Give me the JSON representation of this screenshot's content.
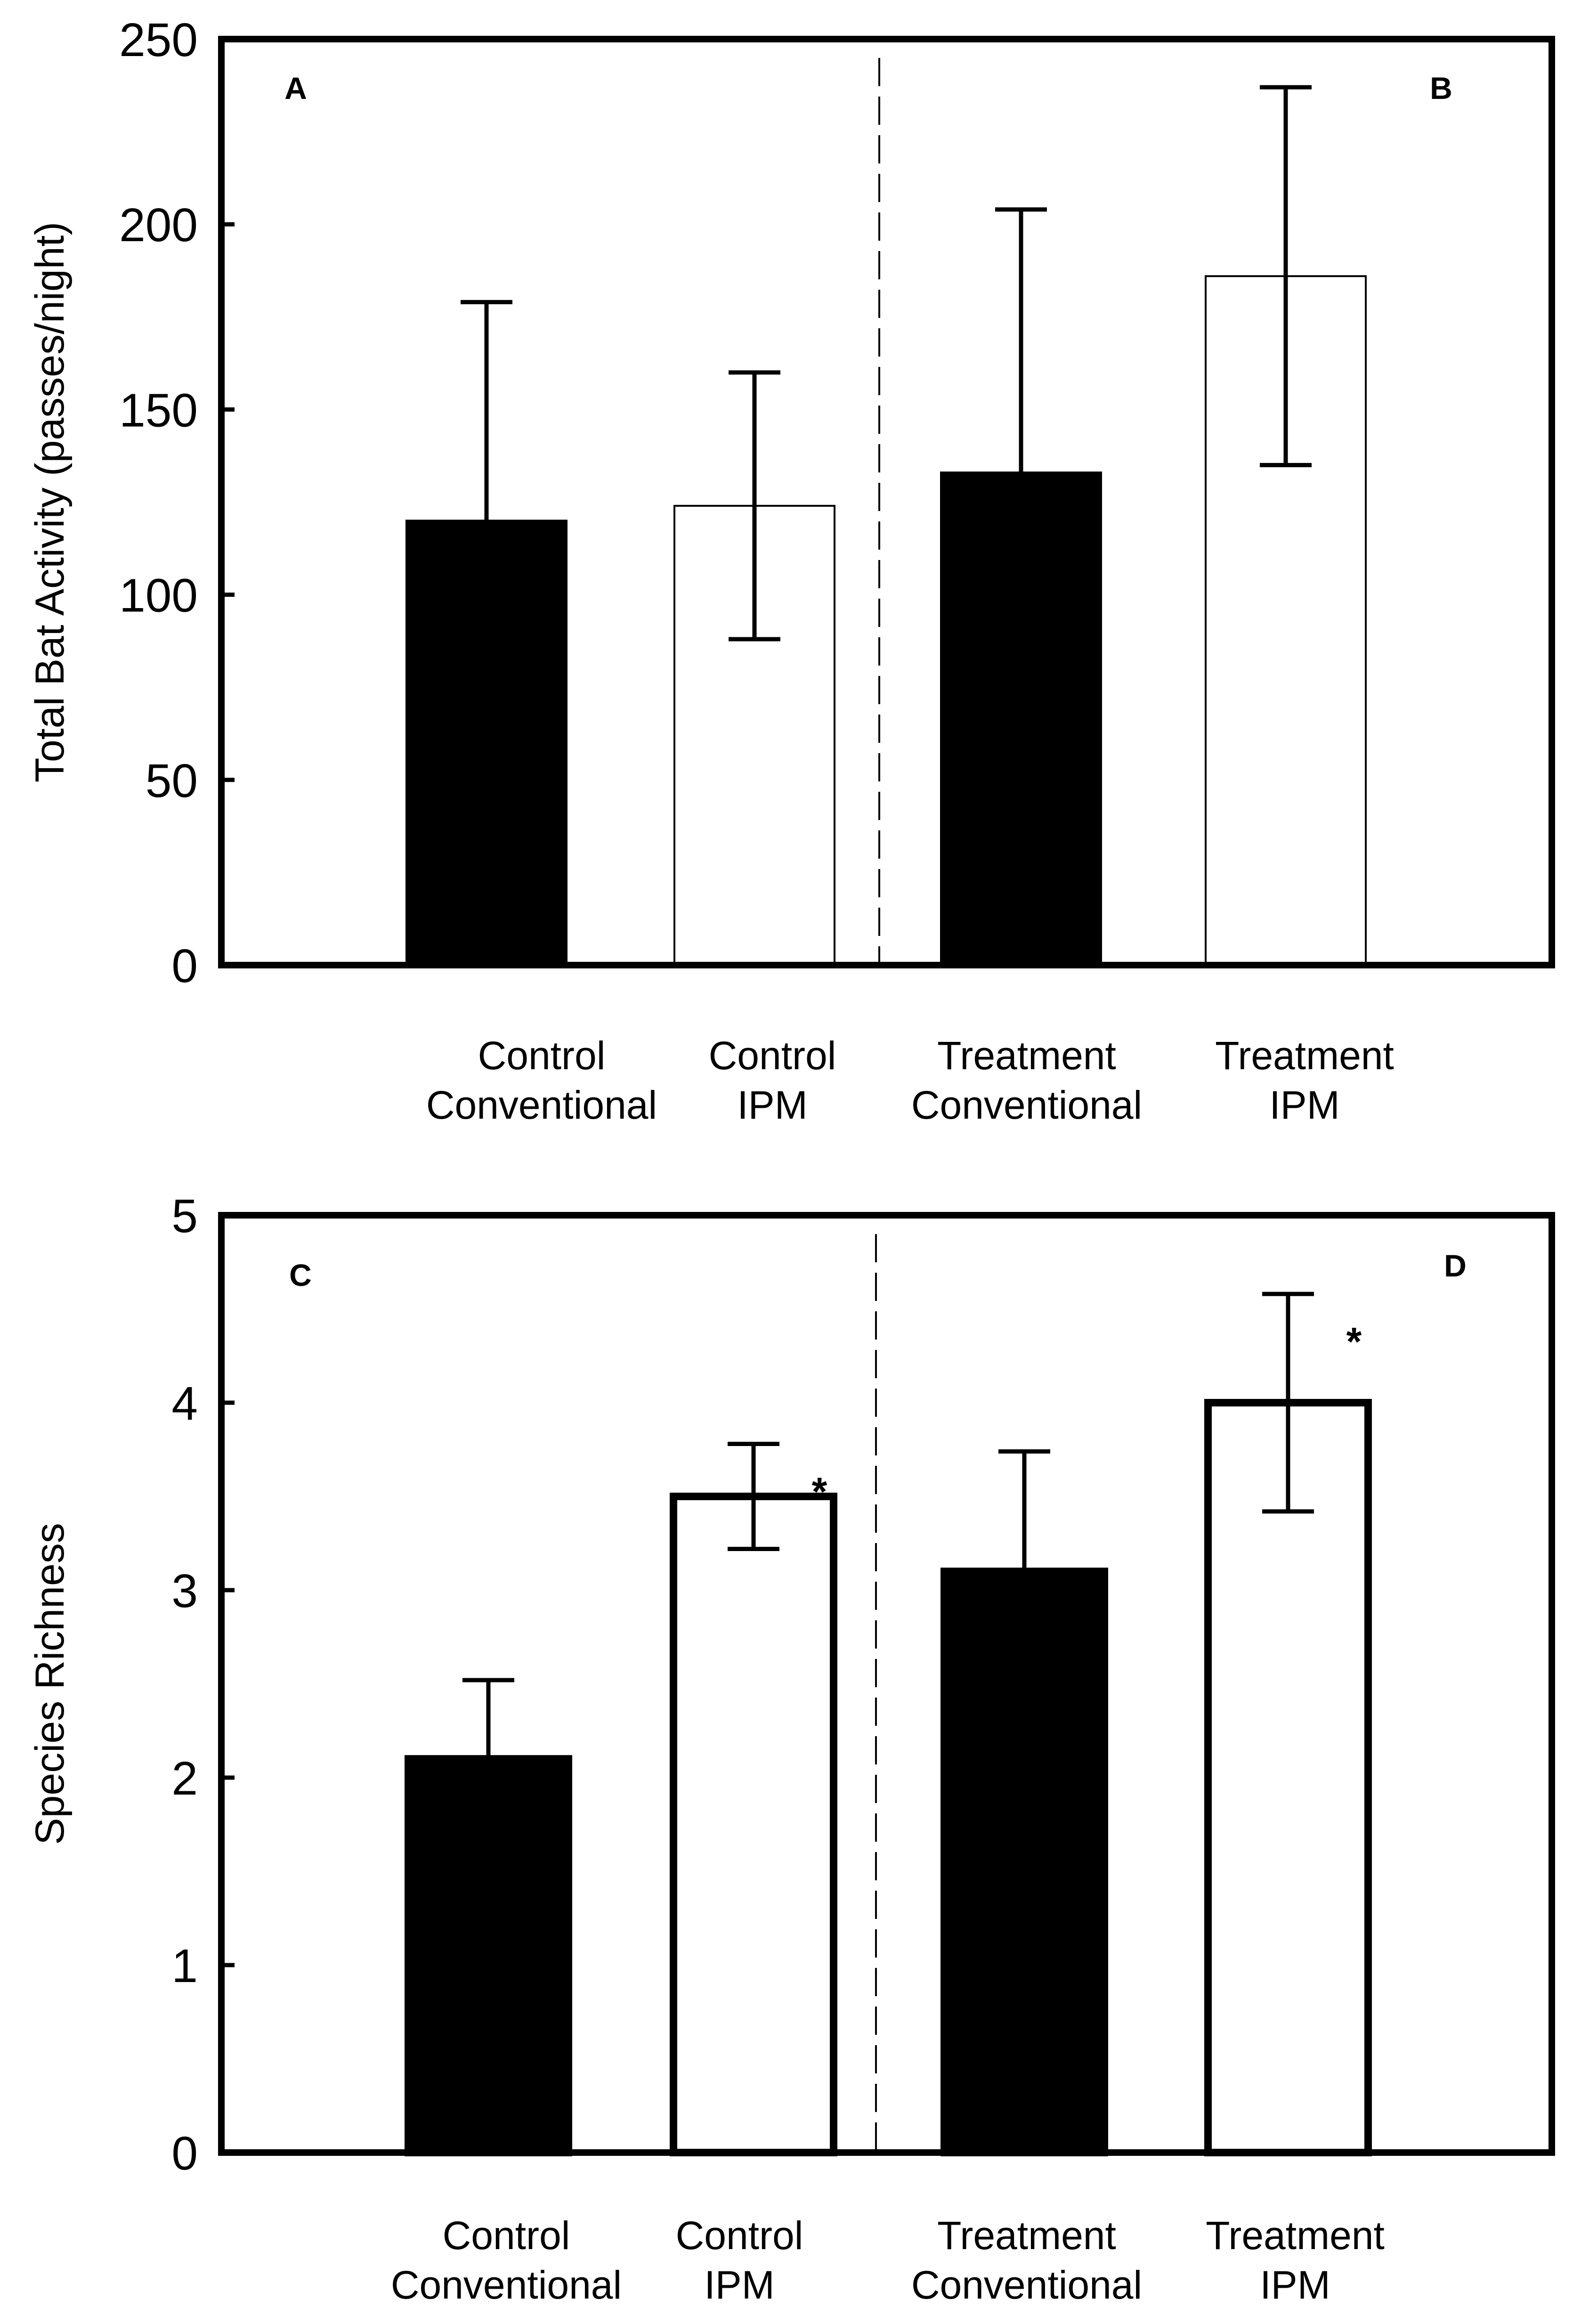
{
  "chart_data": [
    {
      "type": "bar",
      "ylabel": "Total Bat Activity (passes/night)",
      "ylim": [
        0,
        250
      ],
      "yticks": [
        0,
        50,
        100,
        150,
        200,
        250
      ],
      "categories": [
        [
          "Control",
          "Conventional"
        ],
        [
          "Control",
          "IPM"
        ],
        [
          "Treatment",
          "Conventional"
        ],
        [
          "Treatment",
          "IPM"
        ]
      ],
      "values": [
        120,
        124,
        133,
        186
      ],
      "error_upper": [
        179,
        160,
        204,
        237
      ],
      "error_lower": [
        null,
        88,
        null,
        135
      ],
      "fills": [
        "#000000",
        "#ffffff",
        "#000000",
        "#ffffff"
      ],
      "panel_labels": [
        "A",
        "B"
      ],
      "significance": [
        "",
        "",
        "",
        ""
      ]
    },
    {
      "type": "bar",
      "ylabel": "Species Richness",
      "ylim": [
        0,
        5
      ],
      "yticks": [
        0,
        1,
        2,
        3,
        4,
        5
      ],
      "categories": [
        [
          "Control",
          "Conventional"
        ],
        [
          "Control",
          "IPM"
        ],
        [
          "Treatment",
          "Conventional"
        ],
        [
          "Treatment",
          "IPM"
        ]
      ],
      "values": [
        2.1,
        3.5,
        3.1,
        4.0
      ],
      "error_upper": [
        2.52,
        3.78,
        3.74,
        4.58
      ],
      "error_lower": [
        null,
        3.22,
        null,
        3.42
      ],
      "fills": [
        "#000000",
        "#ffffff",
        "#000000",
        "#ffffff"
      ],
      "panel_labels": [
        "C",
        "D"
      ],
      "significance": [
        "",
        "*",
        "",
        "*"
      ]
    }
  ]
}
